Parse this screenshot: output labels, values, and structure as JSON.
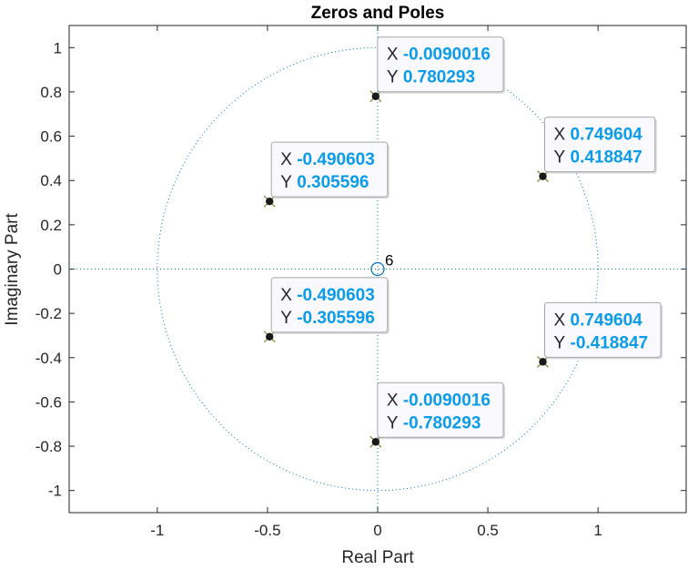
{
  "chart_data": {
    "type": "scatter",
    "title": "Zeros and Poles",
    "xlabel": "Real Part",
    "ylabel": "Imaginary Part",
    "xlim": [
      -1.4,
      1.4
    ],
    "ylim": [
      -1.1,
      1.1
    ],
    "xticks": [
      "-1",
      "-0.5",
      "0",
      "0.5",
      "1"
    ],
    "yticks": [
      "-1",
      "-0.8",
      "-0.6",
      "-0.4",
      "-0.2",
      "0",
      "0.2",
      "0.4",
      "0.6",
      "0.8",
      "1"
    ],
    "xtick_values": [
      -1,
      -0.5,
      0,
      0.5,
      1
    ],
    "ytick_values": [
      -1,
      -0.8,
      -0.6,
      -0.4,
      -0.2,
      0,
      0.2,
      0.4,
      0.6,
      0.8,
      1
    ],
    "unit_circle": true,
    "zeros": [
      {
        "x": 0,
        "y": 0,
        "multiplicity": "6"
      }
    ],
    "poles": [
      {
        "x": -0.0090016,
        "y": 0.780293,
        "label_x": "-0.0090016",
        "label_y": "0.780293"
      },
      {
        "x": 0.749604,
        "y": 0.418847,
        "label_x": "0.749604",
        "label_y": "0.418847"
      },
      {
        "x": -0.490603,
        "y": 0.305596,
        "label_x": "-0.490603",
        "label_y": "0.305596"
      },
      {
        "x": -0.490603,
        "y": -0.305596,
        "label_x": "-0.490603",
        "label_y": "-0.305596"
      },
      {
        "x": 0.749604,
        "y": -0.418847,
        "label_x": "0.749604",
        "label_y": "-0.418847"
      },
      {
        "x": -0.0090016,
        "y": -0.780293,
        "label_x": "-0.0090016",
        "label_y": "-0.780293"
      }
    ],
    "datatip_key_x": "X",
    "datatip_key_y": "Y",
    "colors": {
      "axes": "#262626",
      "guide": "#0072bd",
      "zero_marker": "#0072bd",
      "pole_marker": "#1a1a1a",
      "datatip_value": "#0a9bea"
    }
  }
}
